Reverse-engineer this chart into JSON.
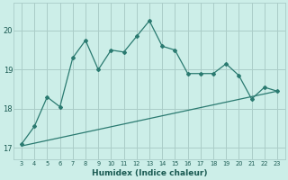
{
  "xlabel": "Humidex (Indice chaleur)",
  "x_values": [
    3,
    4,
    5,
    6,
    7,
    8,
    9,
    10,
    11,
    12,
    13,
    14,
    15,
    16,
    17,
    18,
    19,
    20,
    21,
    22,
    23
  ],
  "y_values": [
    17.1,
    17.55,
    18.3,
    18.05,
    19.3,
    19.75,
    19.0,
    19.5,
    19.45,
    19.85,
    20.25,
    19.6,
    19.5,
    18.9,
    18.9,
    18.9,
    19.15,
    18.85,
    18.25,
    18.55,
    18.45
  ],
  "line_color": "#2a7a70",
  "background_color": "#cceee8",
  "grid_color": "#aaccc8",
  "text_color": "#1a5a52",
  "ylim": [
    16.7,
    20.7
  ],
  "xlim": [
    2.4,
    23.6
  ],
  "yticks": [
    17,
    18,
    19,
    20
  ],
  "xticks": [
    3,
    4,
    5,
    6,
    7,
    8,
    9,
    10,
    11,
    12,
    13,
    14,
    15,
    16,
    17,
    18,
    19,
    20,
    21,
    22,
    23
  ],
  "trend_x": [
    3,
    23
  ],
  "trend_y": [
    17.05,
    18.45
  ]
}
